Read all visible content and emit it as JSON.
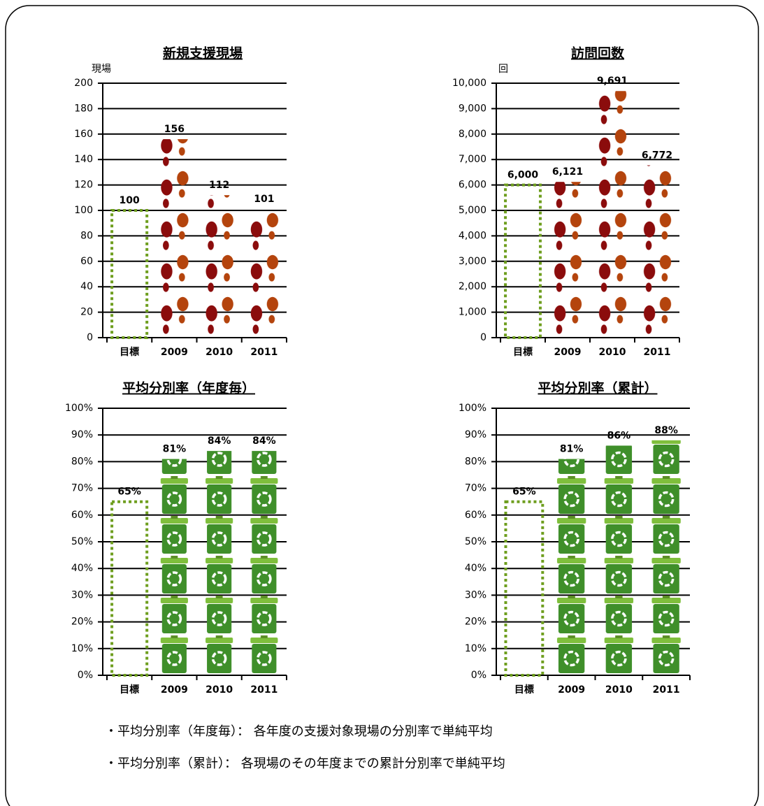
{
  "chart_data": [
    {
      "type": "pictograph",
      "title": "新規支援現場",
      "y_label": "現場",
      "categories": [
        "目標",
        "2009",
        "2010",
        "2011"
      ],
      "values": [
        100,
        156,
        112,
        101
      ],
      "bar_styles": [
        "outline",
        "pictogram",
        "pictogram",
        "pictogram"
      ],
      "pictogram": "footprints",
      "color": "#6e9e1e",
      "ylim": [
        0,
        200
      ],
      "yticks": [
        0,
        20,
        40,
        60,
        80,
        100,
        120,
        140,
        160,
        180,
        200
      ],
      "grid": true
    },
    {
      "type": "pictograph",
      "title": "訪問回数",
      "y_label": "回",
      "categories": [
        "目標",
        "2009",
        "2010",
        "2011"
      ],
      "values": [
        6000,
        6121,
        9691,
        6772
      ],
      "value_labels": [
        "6,000",
        "6,121",
        "9,691",
        "6,772"
      ],
      "bar_styles": [
        "outline",
        "pictogram",
        "pictogram",
        "pictogram"
      ],
      "pictogram": "footprints",
      "color": "#6e9e1e",
      "ylim": [
        0,
        10000
      ],
      "yticks": [
        0,
        {
          "value": 1000,
          "label": "1,000"
        },
        {
          "value": 2000,
          "label": "2,000"
        },
        {
          "value": 3000,
          "label": "3,000"
        },
        {
          "value": 4000,
          "label": "4,000"
        },
        {
          "value": 5000,
          "label": "5,000"
        },
        {
          "value": 6000,
          "label": "6,000"
        },
        {
          "value": 7000,
          "label": "7,000"
        },
        {
          "value": 8000,
          "label": "8,000"
        },
        {
          "value": 9000,
          "label": "9,000"
        },
        {
          "value": 10000,
          "label": "10,000"
        }
      ],
      "grid": true
    },
    {
      "type": "pictograph",
      "title": "平均分別率（年度毎）",
      "categories": [
        "目標",
        "2009",
        "2010",
        "2011"
      ],
      "values": [
        65,
        81,
        84,
        84
      ],
      "value_labels": [
        "65%",
        "81%",
        "84%",
        "84%"
      ],
      "bar_styles": [
        "outline",
        "pictogram",
        "pictogram",
        "pictogram"
      ],
      "pictogram": "recycle-bin",
      "color": "#6e9e1e",
      "ylim": [
        0,
        100
      ],
      "yticks": [
        {
          "value": 0,
          "label": "0%"
        },
        {
          "value": 10,
          "label": "10%"
        },
        {
          "value": 20,
          "label": "20%"
        },
        {
          "value": 30,
          "label": "30%"
        },
        {
          "value": 40,
          "label": "40%"
        },
        {
          "value": 50,
          "label": "50%"
        },
        {
          "value": 60,
          "label": "60%"
        },
        {
          "value": 70,
          "label": "70%"
        },
        {
          "value": 80,
          "label": "80%"
        },
        {
          "value": 90,
          "label": "90%"
        },
        {
          "value": 100,
          "label": "100%"
        }
      ],
      "grid": true
    },
    {
      "type": "pictograph",
      "title": "平均分別率（累計）",
      "categories": [
        "目標",
        "2009",
        "2010",
        "2011"
      ],
      "values": [
        65,
        81,
        86,
        88
      ],
      "value_labels": [
        "65%",
        "81%",
        "86%",
        "88%"
      ],
      "bar_styles": [
        "outline",
        "pictogram",
        "pictogram",
        "pictogram"
      ],
      "pictogram": "recycle-bin",
      "color": "#6e9e1e",
      "ylim": [
        0,
        100
      ],
      "yticks": [
        {
          "value": 0,
          "label": "0%"
        },
        {
          "value": 10,
          "label": "10%"
        },
        {
          "value": 20,
          "label": "20%"
        },
        {
          "value": 30,
          "label": "30%"
        },
        {
          "value": 40,
          "label": "40%"
        },
        {
          "value": 50,
          "label": "50%"
        },
        {
          "value": 60,
          "label": "60%"
        },
        {
          "value": 70,
          "label": "70%"
        },
        {
          "value": 80,
          "label": "80%"
        },
        {
          "value": 90,
          "label": "90%"
        },
        {
          "value": 100,
          "label": "100%"
        }
      ],
      "grid": true
    }
  ],
  "notes": [
    "・平均分別率（年度毎）： 各年度の支援対象現場の分別率で単純平均",
    "・平均分別率（累計）： 各現場のその年度までの累計分別率で単純平均"
  ]
}
